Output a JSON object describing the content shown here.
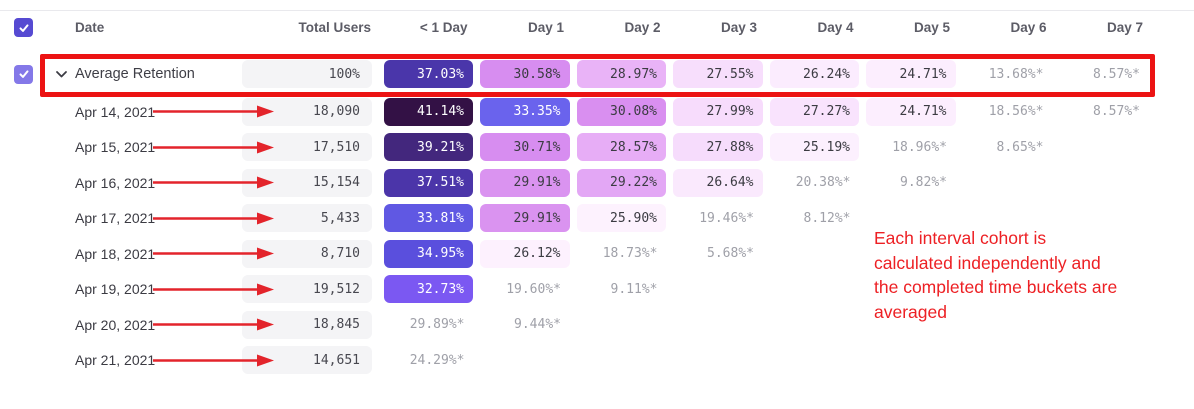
{
  "colors": {
    "header_checkbox": "#564ad2",
    "avg_checkbox": "#8478e8",
    "red_frame": "#ec1313",
    "red_arrow": "#e3242b",
    "annotation_red": "#ed2024",
    "total_pill_bg": "#f4f4f6",
    "muted_text": "#9fa0a8"
  },
  "header": {
    "columns": [
      "Date",
      "Total Users",
      "< 1 Day",
      "Day 1",
      "Day 2",
      "Day 3",
      "Day 4",
      "Day 5",
      "Day 6",
      "Day 7"
    ]
  },
  "average_row": {
    "label": "Average Retention",
    "total": "100%",
    "cells": [
      {
        "v": "37.03%",
        "bg": "#4a36aa",
        "t": "light"
      },
      {
        "v": "30.58%",
        "bg": "#d78df0",
        "t": "dark"
      },
      {
        "v": "28.97%",
        "bg": "#e9b3f7",
        "t": "dark"
      },
      {
        "v": "27.55%",
        "bg": "#f7defc",
        "t": "dark"
      },
      {
        "v": "26.24%",
        "bg": "#fbecfe",
        "t": "dark"
      },
      {
        "v": "24.71%",
        "bg": "#fceefe",
        "t": "dark"
      },
      {
        "v": "13.68%*",
        "t": "muted"
      },
      {
        "v": "8.57%*",
        "t": "muted"
      }
    ]
  },
  "rows": [
    {
      "date": "Apr 14, 2021",
      "total": "18,090",
      "cells": [
        {
          "v": "41.14%",
          "bg": "#331145",
          "t": "light"
        },
        {
          "v": "33.35%",
          "bg": "#6a63ed",
          "t": "light"
        },
        {
          "v": "30.08%",
          "bg": "#d98ff0",
          "t": "dark"
        },
        {
          "v": "27.99%",
          "bg": "#f7dcfc",
          "t": "dark"
        },
        {
          "v": "27.27%",
          "bg": "#f9e3fd",
          "t": "dark"
        },
        {
          "v": "24.71%",
          "bg": "#fceefe",
          "t": "dark"
        },
        {
          "v": "18.56%*",
          "t": "muted"
        },
        {
          "v": "8.57%*",
          "t": "muted"
        }
      ]
    },
    {
      "date": "Apr 15, 2021",
      "total": "17,510",
      "cells": [
        {
          "v": "39.21%",
          "bg": "#43277d",
          "t": "light"
        },
        {
          "v": "30.71%",
          "bg": "#d78df0",
          "t": "dark"
        },
        {
          "v": "28.57%",
          "bg": "#e7adf6",
          "t": "dark"
        },
        {
          "v": "27.88%",
          "bg": "#f6dcfc",
          "t": "dark"
        },
        {
          "v": "25.19%",
          "bg": "#fcf0fe",
          "t": "dark"
        },
        {
          "v": "18.96%*",
          "t": "muted"
        },
        {
          "v": "8.65%*",
          "t": "muted"
        },
        null
      ]
    },
    {
      "date": "Apr 16, 2021",
      "total": "15,154",
      "cells": [
        {
          "v": "37.51%",
          "bg": "#4b35a9",
          "t": "light"
        },
        {
          "v": "29.91%",
          "bg": "#da93f0",
          "t": "dark"
        },
        {
          "v": "29.22%",
          "bg": "#e3a7f5",
          "t": "dark"
        },
        {
          "v": "26.64%",
          "bg": "#fae9fd",
          "t": "dark"
        },
        {
          "v": "20.38%*",
          "t": "muted"
        },
        {
          "v": "9.82%*",
          "t": "muted"
        },
        null,
        null
      ]
    },
    {
      "date": "Apr 17, 2021",
      "total": "5,433",
      "cells": [
        {
          "v": "33.81%",
          "bg": "#6058e3",
          "t": "light"
        },
        {
          "v": "29.91%",
          "bg": "#da93f0",
          "t": "dark"
        },
        {
          "v": "25.90%",
          "bg": "#fdf2fe",
          "t": "dark"
        },
        {
          "v": "19.46%*",
          "t": "muted"
        },
        {
          "v": "8.12%*",
          "t": "muted"
        },
        null,
        null,
        null
      ]
    },
    {
      "date": "Apr 18, 2021",
      "total": "8,710",
      "cells": [
        {
          "v": "34.95%",
          "bg": "#5a4fdd",
          "t": "light"
        },
        {
          "v": "26.12%",
          "bg": "#fdf1fe",
          "t": "dark"
        },
        {
          "v": "18.73%*",
          "t": "muted"
        },
        {
          "v": "5.68%*",
          "t": "muted"
        },
        null,
        null,
        null,
        null
      ]
    },
    {
      "date": "Apr 19, 2021",
      "total": "19,512",
      "cells": [
        {
          "v": "32.73%",
          "bg": "#7b58f2",
          "t": "light"
        },
        {
          "v": "19.60%*",
          "t": "muted"
        },
        {
          "v": "9.11%*",
          "t": "muted"
        },
        null,
        null,
        null,
        null,
        null
      ]
    },
    {
      "date": "Apr 20, 2021",
      "total": "18,845",
      "cells": [
        {
          "v": "29.89%*",
          "t": "muted"
        },
        {
          "v": "9.44%*",
          "t": "muted"
        },
        null,
        null,
        null,
        null,
        null,
        null
      ]
    },
    {
      "date": "Apr 21, 2021",
      "total": "14,651",
      "cells": [
        {
          "v": "24.29%*",
          "t": "muted"
        },
        null,
        null,
        null,
        null,
        null,
        null,
        null
      ]
    }
  ],
  "annotation": {
    "lines": [
      "Each interval cohort is",
      "calculated independently and",
      "the completed time buckets are",
      "averaged"
    ]
  }
}
